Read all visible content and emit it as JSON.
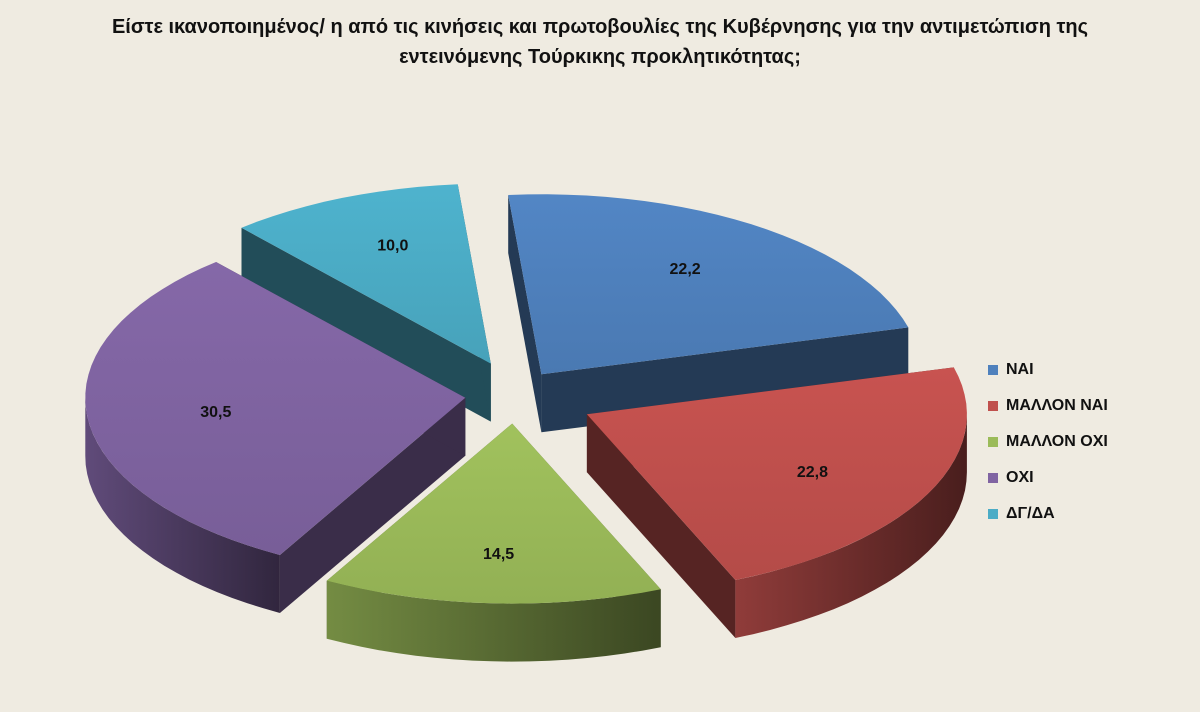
{
  "chart_data": {
    "type": "pie",
    "style": "3d-exploded",
    "title_lines": [
      "Είστε ικανοποιημένος/ η από τις κινήσεις και πρωτοβουλίες της Κυβέρνησης για την αντιμετώπιση της",
      "εντεινόμενης  Τούρκικης προκλητικότητας;"
    ],
    "legend_position": "right",
    "slices": [
      {
        "name": "ΝΑΙ",
        "value": 22.2,
        "label": "22,2",
        "color": "#4f81bd"
      },
      {
        "name": "ΜΑΛΛΟΝ ΝΑΙ",
        "value": 22.8,
        "label": "22,8",
        "color": "#c0504d"
      },
      {
        "name": "ΜΑΛΛΟΝ ΟΧΙ",
        "value": 14.5,
        "label": "14,5",
        "color": "#9bbb59"
      },
      {
        "name": "ΟΧΙ",
        "value": 30.5,
        "label": "30,5",
        "color": "#8064a2"
      },
      {
        "name": "ΔΓ/ΔΑ",
        "value": 10.0,
        "label": "10,0",
        "color": "#4bacc6"
      }
    ]
  }
}
